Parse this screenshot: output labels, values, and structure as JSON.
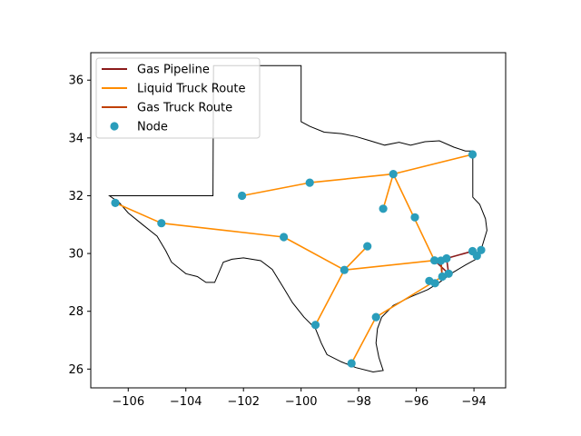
{
  "chart_data": {
    "type": "map",
    "title": "",
    "xlabel": "",
    "ylabel": "",
    "xlim": [
      -107.3,
      -92.9
    ],
    "ylim": [
      25.35,
      36.95
    ],
    "xticks": [
      -106,
      -104,
      -102,
      -100,
      -98,
      -96,
      -94
    ],
    "xtick_labels": [
      "−106",
      "−104",
      "−102",
      "−100",
      "−98",
      "−96",
      "−94"
    ],
    "yticks": [
      26,
      28,
      30,
      32,
      34,
      36
    ],
    "ytick_labels": [
      "26",
      "28",
      "30",
      "32",
      "34",
      "36"
    ],
    "grid": false,
    "legend_position": "top-left",
    "colors": {
      "gas_pipeline": "#8b1a1a",
      "liquid_truck": "#ff8c00",
      "gas_truck": "#c04000",
      "node": "#2a9dbb",
      "border": "#000000"
    },
    "legend": [
      {
        "label": "Gas Pipeline",
        "kind": "line",
        "color": "#8b1a1a"
      },
      {
        "label": "Liquid Truck Route",
        "kind": "line",
        "color": "#ff8c00"
      },
      {
        "label": "Gas Truck Route",
        "kind": "line",
        "color": "#c04000"
      },
      {
        "label": "Node",
        "kind": "marker",
        "color": "#2a9dbb"
      }
    ],
    "nodes": [
      {
        "lon": -106.45,
        "lat": 31.75
      },
      {
        "lon": -104.85,
        "lat": 31.05
      },
      {
        "lon": -102.05,
        "lat": 32.0
      },
      {
        "lon": -99.7,
        "lat": 32.45
      },
      {
        "lon": -96.8,
        "lat": 32.75
      },
      {
        "lon": -94.05,
        "lat": 33.43
      },
      {
        "lon": -97.15,
        "lat": 31.55
      },
      {
        "lon": -96.05,
        "lat": 31.25
      },
      {
        "lon": -100.6,
        "lat": 30.57
      },
      {
        "lon": -97.7,
        "lat": 30.25
      },
      {
        "lon": -98.5,
        "lat": 29.43
      },
      {
        "lon": -95.37,
        "lat": 29.76
      },
      {
        "lon": -95.15,
        "lat": 29.75
      },
      {
        "lon": -94.95,
        "lat": 29.83
      },
      {
        "lon": -94.05,
        "lat": 30.08
      },
      {
        "lon": -93.75,
        "lat": 30.12
      },
      {
        "lon": -93.9,
        "lat": 29.92
      },
      {
        "lon": -95.55,
        "lat": 29.05
      },
      {
        "lon": -95.35,
        "lat": 28.97
      },
      {
        "lon": -95.1,
        "lat": 29.2
      },
      {
        "lon": -94.88,
        "lat": 29.3
      },
      {
        "lon": -99.5,
        "lat": 27.53
      },
      {
        "lon": -97.4,
        "lat": 27.8
      },
      {
        "lon": -98.25,
        "lat": 26.2
      }
    ],
    "liquid_truck_routes": [
      [
        [
          -106.45,
          31.75
        ],
        [
          -104.85,
          31.05
        ],
        [
          -100.6,
          30.57
        ],
        [
          -98.5,
          29.43
        ]
      ],
      [
        [
          -98.5,
          29.43
        ],
        [
          -95.37,
          29.76
        ]
      ],
      [
        [
          -98.5,
          29.43
        ],
        [
          -97.7,
          30.25
        ]
      ],
      [
        [
          -98.5,
          29.43
        ],
        [
          -99.5,
          27.53
        ]
      ],
      [
        [
          -102.05,
          32.0
        ],
        [
          -99.7,
          32.45
        ],
        [
          -96.8,
          32.75
        ],
        [
          -94.05,
          33.43
        ]
      ],
      [
        [
          -96.8,
          32.75
        ],
        [
          -97.15,
          31.55
        ]
      ],
      [
        [
          -96.8,
          32.75
        ],
        [
          -95.37,
          29.76
        ]
      ],
      [
        [
          -98.25,
          26.2
        ],
        [
          -97.4,
          27.8
        ],
        [
          -95.1,
          29.2
        ]
      ]
    ],
    "gas_pipelines": [
      [
        [
          -95.37,
          29.76
        ],
        [
          -95.15,
          29.75
        ],
        [
          -94.95,
          29.83
        ],
        [
          -94.05,
          30.08
        ]
      ],
      [
        [
          -95.15,
          29.75
        ],
        [
          -95.1,
          29.2
        ]
      ],
      [
        [
          -94.95,
          29.83
        ],
        [
          -94.88,
          29.3
        ]
      ],
      [
        [
          -95.37,
          29.76
        ],
        [
          -94.88,
          29.3
        ]
      ]
    ],
    "gas_truck_routes": [
      [
        [
          -95.1,
          29.2
        ],
        [
          -95.15,
          29.75
        ]
      ]
    ],
    "texas_border": [
      [
        -106.65,
        32.0
      ],
      [
        -103.06,
        32.0
      ],
      [
        -103.04,
        36.5
      ],
      [
        -100.0,
        36.5
      ],
      [
        -100.0,
        34.56
      ],
      [
        -99.7,
        34.4
      ],
      [
        -99.2,
        34.2
      ],
      [
        -98.6,
        34.15
      ],
      [
        -98.1,
        34.05
      ],
      [
        -97.6,
        33.9
      ],
      [
        -97.1,
        33.75
      ],
      [
        -96.6,
        33.85
      ],
      [
        -96.2,
        33.75
      ],
      [
        -95.7,
        33.87
      ],
      [
        -95.2,
        33.9
      ],
      [
        -94.7,
        33.68
      ],
      [
        -94.3,
        33.55
      ],
      [
        -94.04,
        33.55
      ],
      [
        -94.04,
        33.0
      ],
      [
        -94.04,
        31.95
      ],
      [
        -93.8,
        31.7
      ],
      [
        -93.6,
        31.2
      ],
      [
        -93.55,
        30.8
      ],
      [
        -93.7,
        30.3
      ],
      [
        -93.85,
        29.85
      ],
      [
        -94.3,
        29.6
      ],
      [
        -94.8,
        29.3
      ],
      [
        -95.2,
        29.0
      ],
      [
        -95.6,
        28.75
      ],
      [
        -96.2,
        28.5
      ],
      [
        -96.8,
        28.2
      ],
      [
        -97.2,
        27.8
      ],
      [
        -97.35,
        27.4
      ],
      [
        -97.4,
        26.9
      ],
      [
        -97.3,
        26.4
      ],
      [
        -97.15,
        25.95
      ],
      [
        -97.5,
        25.9
      ],
      [
        -98.1,
        26.05
      ],
      [
        -98.6,
        26.25
      ],
      [
        -99.1,
        26.5
      ],
      [
        -99.3,
        26.9
      ],
      [
        -99.5,
        27.4
      ],
      [
        -99.9,
        27.8
      ],
      [
        -100.3,
        28.3
      ],
      [
        -100.6,
        28.8
      ],
      [
        -101.0,
        29.45
      ],
      [
        -101.4,
        29.75
      ],
      [
        -102.0,
        29.85
      ],
      [
        -102.4,
        29.8
      ],
      [
        -102.7,
        29.7
      ],
      [
        -103.0,
        29.0
      ],
      [
        -103.3,
        29.0
      ],
      [
        -103.6,
        29.2
      ],
      [
        -104.0,
        29.3
      ],
      [
        -104.5,
        29.7
      ],
      [
        -104.7,
        30.1
      ],
      [
        -105.0,
        30.6
      ],
      [
        -105.5,
        31.0
      ],
      [
        -106.0,
        31.4
      ],
      [
        -106.3,
        31.75
      ],
      [
        -106.65,
        32.0
      ]
    ]
  }
}
